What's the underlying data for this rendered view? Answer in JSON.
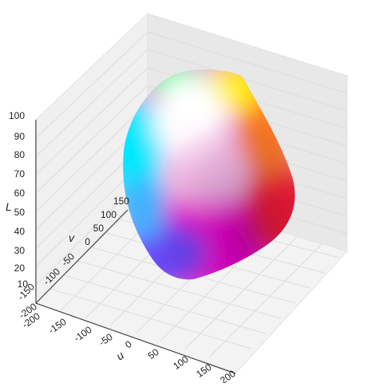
{
  "figure": {
    "axes": {
      "L": {
        "label": "L",
        "ticks": [
          "10",
          "20",
          "30",
          "40",
          "50",
          "60",
          "70",
          "80",
          "90",
          "100"
        ]
      },
      "u": {
        "label": "u",
        "ticks": [
          "-200",
          "-150",
          "-100",
          "-50",
          "0",
          "50",
          "100",
          "150",
          "200"
        ]
      },
      "v": {
        "label": "v",
        "ticks": [
          "-150",
          "-100",
          "-50",
          "0",
          "50",
          "100",
          "150"
        ]
      }
    },
    "colors": {
      "background": "#ffffff",
      "pane": "#eeeeee",
      "grid": "#d8d8d8",
      "axis_line": "#444444",
      "gamut_white": "#ffffff",
      "gamut_yellow": "#ffee00",
      "gamut_cyan": "#00e8ff",
      "gamut_magenta": "#ff00e0",
      "gamut_red": "#ff1a30",
      "gamut_blue": "#5a3cff"
    }
  }
}
